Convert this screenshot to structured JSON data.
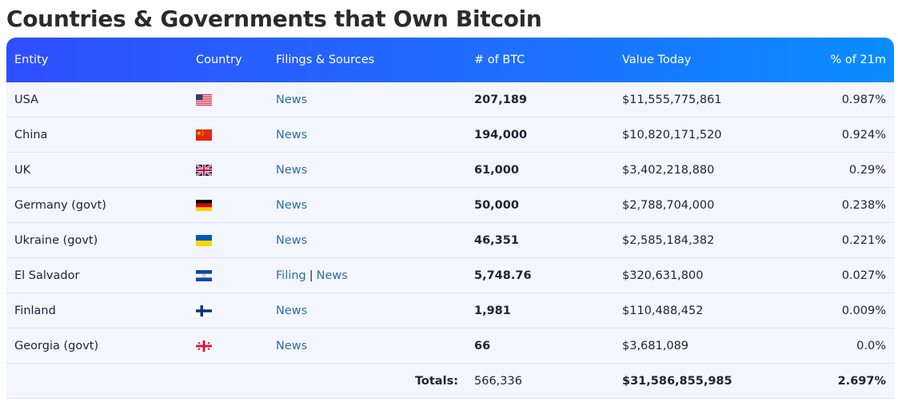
{
  "page": {
    "title": "Countries & Governments that Own Bitcoin"
  },
  "table": {
    "headers": {
      "entity": "Entity",
      "country": "Country",
      "filings": "Filings & Sources",
      "btc": "# of BTC",
      "value": "Value Today",
      "pct": "% of 21m"
    },
    "rows": [
      {
        "entity": "USA",
        "flag": "us-flag-icon",
        "sources": [
          "News"
        ],
        "btc": "207,189",
        "value": "$11,555,775,861",
        "pct": "0.987%"
      },
      {
        "entity": "China",
        "flag": "china-flag-icon",
        "sources": [
          "News"
        ],
        "btc": "194,000",
        "value": "$10,820,171,520",
        "pct": "0.924%"
      },
      {
        "entity": "UK",
        "flag": "uk-flag-icon",
        "sources": [
          "News"
        ],
        "btc": "61,000",
        "value": "$3,402,218,880",
        "pct": "0.29%"
      },
      {
        "entity": "Germany (govt)",
        "flag": "germany-flag-icon",
        "sources": [
          "News"
        ],
        "btc": "50,000",
        "value": "$2,788,704,000",
        "pct": "0.238%"
      },
      {
        "entity": "Ukraine (govt)",
        "flag": "ukraine-flag-icon",
        "sources": [
          "News"
        ],
        "btc": "46,351",
        "value": "$2,585,184,382",
        "pct": "0.221%"
      },
      {
        "entity": "El Salvador",
        "flag": "el-salvador-flag-icon",
        "sources": [
          "Filing",
          "News"
        ],
        "btc": "5,748.76",
        "value": "$320,631,800",
        "pct": "0.027%"
      },
      {
        "entity": "Finland",
        "flag": "finland-flag-icon",
        "sources": [
          "News"
        ],
        "btc": "1,981",
        "value": "$110,488,452",
        "pct": "0.009%"
      },
      {
        "entity": "Georgia (govt)",
        "flag": "georgia-flag-icon",
        "sources": [
          "News"
        ],
        "btc": "66",
        "value": "$3,681,089",
        "pct": "0.0%"
      }
    ],
    "separator": "|",
    "totals": {
      "label": "Totals:",
      "btc": "566,336",
      "value": "$31,586,855,985",
      "pct": "2.697%"
    }
  },
  "colors": {
    "header_gradient_start": "#2f4fff",
    "header_gradient_end": "#0a8dff",
    "row_background": "#f3f6fc",
    "link": "#2f6fa5"
  }
}
